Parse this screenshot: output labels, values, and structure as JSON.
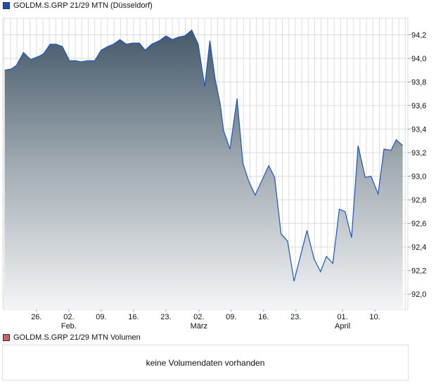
{
  "chart_data": {
    "type": "area",
    "title": "GOLDM.S.GRP 21/29 MTN (Düsseldorf)",
    "x_unit": "trading day index",
    "xlim": [
      -0.3,
      62.3
    ],
    "ylim": [
      91.87,
      94.34
    ],
    "grid": true,
    "y_ticks": [
      92.0,
      92.2,
      92.4,
      92.6,
      92.8,
      93.0,
      93.2,
      93.4,
      93.6,
      93.8,
      94.0,
      94.2
    ],
    "y_tick_labels": [
      "92,0",
      "92,2",
      "92,4",
      "92,6",
      "92,8",
      "93,0",
      "93,2",
      "93,4",
      "93,6",
      "93,8",
      "94,0",
      "94,2"
    ],
    "x_ticks": [
      {
        "x": 4.9,
        "label": "26.",
        "month": ""
      },
      {
        "x": 9.9,
        "label": "02.",
        "month": "Feb."
      },
      {
        "x": 14.9,
        "label": "09.",
        "month": ""
      },
      {
        "x": 19.9,
        "label": "16.",
        "month": ""
      },
      {
        "x": 24.9,
        "label": "23.",
        "month": ""
      },
      {
        "x": 30.0,
        "label": "02.",
        "month": "März"
      },
      {
        "x": 35.0,
        "label": "09.",
        "month": ""
      },
      {
        "x": 40.0,
        "label": "16.",
        "month": ""
      },
      {
        "x": 45.0,
        "label": "23.",
        "month": ""
      },
      {
        "x": 52.2,
        "label": "01.",
        "month": "April"
      },
      {
        "x": 57.2,
        "label": "10.",
        "month": ""
      }
    ],
    "series": [
      {
        "name": "GOLDM.S.GRP 21/29 MTN (Düsseldorf)",
        "color": "#1a56c8",
        "points": [
          [
            0,
            93.9
          ],
          [
            1,
            93.91
          ],
          [
            1.8,
            93.94
          ],
          [
            2.9,
            94.05
          ],
          [
            4,
            93.99
          ],
          [
            5.4,
            94.02
          ],
          [
            6,
            94.04
          ],
          [
            7,
            94.12
          ],
          [
            7.9,
            94.12
          ],
          [
            8.9,
            94.1
          ],
          [
            10,
            93.98
          ],
          [
            11,
            93.98
          ],
          [
            11.8,
            93.97
          ],
          [
            12.8,
            93.98
          ],
          [
            13.9,
            93.98
          ],
          [
            14.9,
            94.07
          ],
          [
            15.9,
            94.1
          ],
          [
            16.8,
            94.12
          ],
          [
            17.8,
            94.16
          ],
          [
            18.8,
            94.12
          ],
          [
            19.8,
            94.13
          ],
          [
            20.8,
            94.13
          ],
          [
            21.7,
            94.07
          ],
          [
            22.7,
            94.12
          ],
          [
            23.9,
            94.15
          ],
          [
            24.9,
            94.19
          ],
          [
            25.9,
            94.16
          ],
          [
            26.8,
            94.18
          ],
          [
            27.8,
            94.19
          ],
          [
            28.9,
            94.24
          ],
          [
            29.9,
            94.12
          ],
          [
            30.9,
            93.76
          ],
          [
            31.7,
            94.15
          ],
          [
            32.5,
            93.83
          ],
          [
            33.3,
            93.61
          ],
          [
            33.8,
            93.39
          ],
          [
            34.8,
            93.23
          ],
          [
            35.9,
            93.66
          ],
          [
            36.8,
            93.11
          ],
          [
            37.7,
            92.96
          ],
          [
            38.7,
            92.84
          ],
          [
            40.8,
            93.09
          ],
          [
            41.7,
            92.99
          ],
          [
            42.7,
            92.51
          ],
          [
            43.7,
            92.45
          ],
          [
            44.7,
            92.11
          ],
          [
            46.7,
            92.54
          ],
          [
            47.8,
            92.3
          ],
          [
            48.8,
            92.19
          ],
          [
            49.7,
            92.32
          ],
          [
            50.7,
            92.26
          ],
          [
            51.7,
            92.72
          ],
          [
            52.6,
            92.7
          ],
          [
            53.6,
            92.48
          ],
          [
            54.6,
            93.26
          ],
          [
            55.7,
            92.99
          ],
          [
            56.6,
            93.0
          ],
          [
            57.7,
            92.85
          ],
          [
            58.6,
            93.23
          ],
          [
            59.7,
            93.22
          ],
          [
            60.5,
            93.31
          ],
          [
            61.5,
            93.26
          ]
        ]
      }
    ]
  },
  "legend": {
    "price_label": "GOLDM.S.GRP 21/29 MTN (Düsseldorf)",
    "price_color": "#1a4fb8",
    "volume_label": "GOLDM.S.GRP 21/29 MTN Volumen",
    "volume_color": "#d06060"
  },
  "volume": {
    "empty_message": "keine Volumendaten vorhanden"
  }
}
